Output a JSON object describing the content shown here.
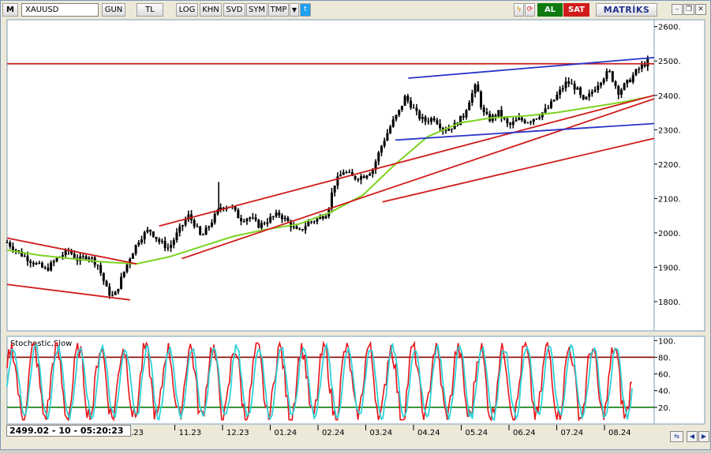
{
  "app": {
    "brand": "MATRİKS"
  },
  "toolbar": {
    "menu_letter": "M",
    "symbol": "XAUUSD",
    "periods": [
      "GUN",
      "TL",
      "LOG",
      "KHN",
      "SVD",
      "SYM",
      "TMP"
    ],
    "buy_label": "AL",
    "sell_label": "SAT",
    "colors": {
      "buy": "#0e7a10",
      "sell": "#d01b1b",
      "brand": "#23348b"
    }
  },
  "window_controls": [
    "minimize",
    "restore",
    "close"
  ],
  "status": {
    "readout": "2499.02 - 10 - 05:20:23"
  },
  "chart_data": [
    {
      "type": "candlestick",
      "title": "",
      "y_ticks": [
        1800,
        1900,
        2000,
        2100,
        2200,
        2300,
        2400,
        2500,
        2600
      ],
      "y_tick_labels": [
        "1800.",
        "1900.",
        "2000.",
        "2100.",
        "2200.",
        "2300.",
        "2400.",
        "2500.",
        "2600."
      ],
      "ylim": [
        1715,
        2620
      ],
      "x_tick_labels": [
        ".23",
        "11.23",
        "12.23",
        "01.24",
        "02.24",
        "03.24",
        "04.24",
        "05.24",
        "06.24",
        "07.24",
        "08.24"
      ],
      "x_tick_positions": [
        0.09,
        0.15,
        0.22,
        0.29,
        0.36,
        0.43,
        0.5,
        0.57,
        0.64,
        0.71,
        0.78
      ],
      "price_path": [
        [
          0.0,
          1972
        ],
        [
          0.02,
          1940
        ],
        [
          0.04,
          1915
        ],
        [
          0.06,
          1892
        ],
        [
          0.08,
          1930
        ],
        [
          0.095,
          1948
        ],
        [
          0.11,
          1920
        ],
        [
          0.125,
          1935
        ],
        [
          0.14,
          1908
        ],
        [
          0.155,
          1830
        ],
        [
          0.165,
          1812
        ],
        [
          0.175,
          1860
        ],
        [
          0.19,
          1930
        ],
        [
          0.205,
          1985
        ],
        [
          0.22,
          2010
        ],
        [
          0.235,
          1975
        ],
        [
          0.25,
          1955
        ],
        [
          0.265,
          2005
        ],
        [
          0.28,
          2050
        ],
        [
          0.29,
          2025
        ],
        [
          0.3,
          1985
        ],
        [
          0.315,
          2030
        ],
        [
          0.33,
          2075
        ],
        [
          0.345,
          2080
        ],
        [
          0.36,
          2040
        ],
        [
          0.375,
          2045
        ],
        [
          0.39,
          2020
        ],
        [
          0.405,
          2040
        ],
        [
          0.42,
          2055
        ],
        [
          0.435,
          2030
        ],
        [
          0.45,
          2000
        ],
        [
          0.465,
          2030
        ],
        [
          0.48,
          2040
        ],
        [
          0.495,
          2060
        ],
        [
          0.505,
          2140
        ],
        [
          0.52,
          2180
        ],
        [
          0.535,
          2160
        ],
        [
          0.55,
          2165
        ],
        [
          0.565,
          2185
        ],
        [
          0.58,
          2260
        ],
        [
          0.595,
          2320
        ],
        [
          0.605,
          2350
        ],
        [
          0.615,
          2395
        ],
        [
          0.625,
          2370
        ],
        [
          0.635,
          2340
        ],
        [
          0.645,
          2325
        ],
        [
          0.66,
          2335
        ],
        [
          0.675,
          2300
        ],
        [
          0.69,
          2310
        ],
        [
          0.705,
          2340
        ],
        [
          0.715,
          2390
        ],
        [
          0.725,
          2430
        ],
        [
          0.735,
          2350
        ],
        [
          0.745,
          2330
        ],
        [
          0.76,
          2350
        ],
        [
          0.775,
          2310
        ],
        [
          0.79,
          2330
        ],
        [
          0.805,
          2325
        ],
        [
          0.82,
          2340
        ],
        [
          0.835,
          2360
        ],
        [
          0.85,
          2400
        ],
        [
          0.865,
          2440
        ],
        [
          0.88,
          2420
        ],
        [
          0.89,
          2380
        ],
        [
          0.9,
          2400
        ],
        [
          0.915,
          2440
        ],
        [
          0.93,
          2470
        ],
        [
          0.945,
          2410
        ],
        [
          0.96,
          2440
        ],
        [
          0.975,
          2475
        ],
        [
          0.99,
          2499
        ]
      ],
      "moving_average": [
        [
          0.0,
          1950
        ],
        [
          0.05,
          1935
        ],
        [
          0.1,
          1925
        ],
        [
          0.15,
          1915
        ],
        [
          0.2,
          1910
        ],
        [
          0.25,
          1930
        ],
        [
          0.3,
          1960
        ],
        [
          0.35,
          1990
        ],
        [
          0.4,
          2010
        ],
        [
          0.45,
          2025
        ],
        [
          0.5,
          2060
        ],
        [
          0.55,
          2110
        ],
        [
          0.6,
          2200
        ],
        [
          0.65,
          2280
        ],
        [
          0.7,
          2320
        ],
        [
          0.75,
          2335
        ],
        [
          0.8,
          2340
        ],
        [
          0.85,
          2350
        ],
        [
          0.9,
          2365
        ],
        [
          0.95,
          2380
        ],
        [
          0.99,
          2395
        ]
      ],
      "resistance_level": 2492,
      "trend_lines": [
        {
          "color": "#d01b1b",
          "points": [
            [
              0.0,
              1985
            ],
            [
              0.2,
              1910
            ]
          ]
        },
        {
          "color": "#d01b1b",
          "points": [
            [
              0.0,
              1850
            ],
            [
              0.19,
              1805
            ]
          ]
        },
        {
          "color": "#d01b1b",
          "points": [
            [
              0.235,
              2020
            ],
            [
              1.0,
              2400
            ]
          ]
        },
        {
          "color": "#d01b1b",
          "points": [
            [
              0.27,
              1925
            ],
            [
              1.0,
              2390
            ]
          ]
        },
        {
          "color": "#d01b1b",
          "points": [
            [
              0.58,
              2090
            ],
            [
              1.0,
              2275
            ]
          ]
        },
        {
          "color": "#2a34c8",
          "points": [
            [
              0.62,
              2450
            ],
            [
              1.0,
              2510
            ]
          ]
        },
        {
          "color": "#2a34c8",
          "points": [
            [
              0.6,
              2270
            ],
            [
              1.0,
              2318
            ]
          ]
        }
      ]
    },
    {
      "type": "line",
      "title": "Stochastic,Slow",
      "y_ticks": [
        20,
        40,
        60,
        80,
        100
      ],
      "y_tick_labels": [
        "20.",
        "40.",
        "60.",
        "80.",
        "100."
      ],
      "ylim": [
        0,
        105
      ],
      "levels": [
        80,
        20
      ],
      "series": [
        {
          "color": "#e8141a",
          "cycles": 28
        },
        {
          "color": "#2bd3d8",
          "cycles": 28
        }
      ]
    }
  ]
}
